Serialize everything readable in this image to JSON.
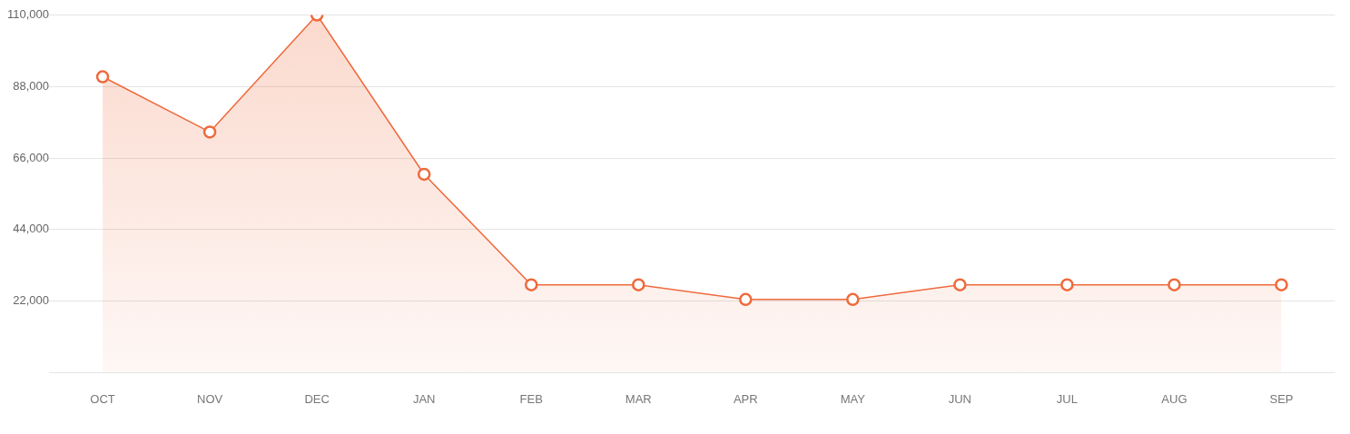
{
  "chart_data": {
    "type": "area",
    "categories": [
      "OCT",
      "NOV",
      "DEC",
      "JAN",
      "FEB",
      "MAR",
      "APR",
      "MAY",
      "JUN",
      "JUL",
      "AUG",
      "SEP"
    ],
    "series": [
      {
        "color": "#ee6a3c",
        "values": [
          91000,
          74000,
          110000,
          61000,
          27000,
          27000,
          22500,
          22500,
          27000,
          27000,
          27000,
          27000
        ]
      }
    ],
    "ylim": [
      0,
      110000
    ],
    "yticks": [
      {
        "value": 0,
        "label": null
      },
      {
        "value": 22000,
        "label": "22,000"
      },
      {
        "value": 44000,
        "label": "44,000"
      },
      {
        "value": 66000,
        "label": "66,000"
      },
      {
        "value": 88000,
        "label": "88,000"
      },
      {
        "value": 110000,
        "label": "110,000"
      }
    ],
    "grid": "y",
    "marker": "circle"
  }
}
